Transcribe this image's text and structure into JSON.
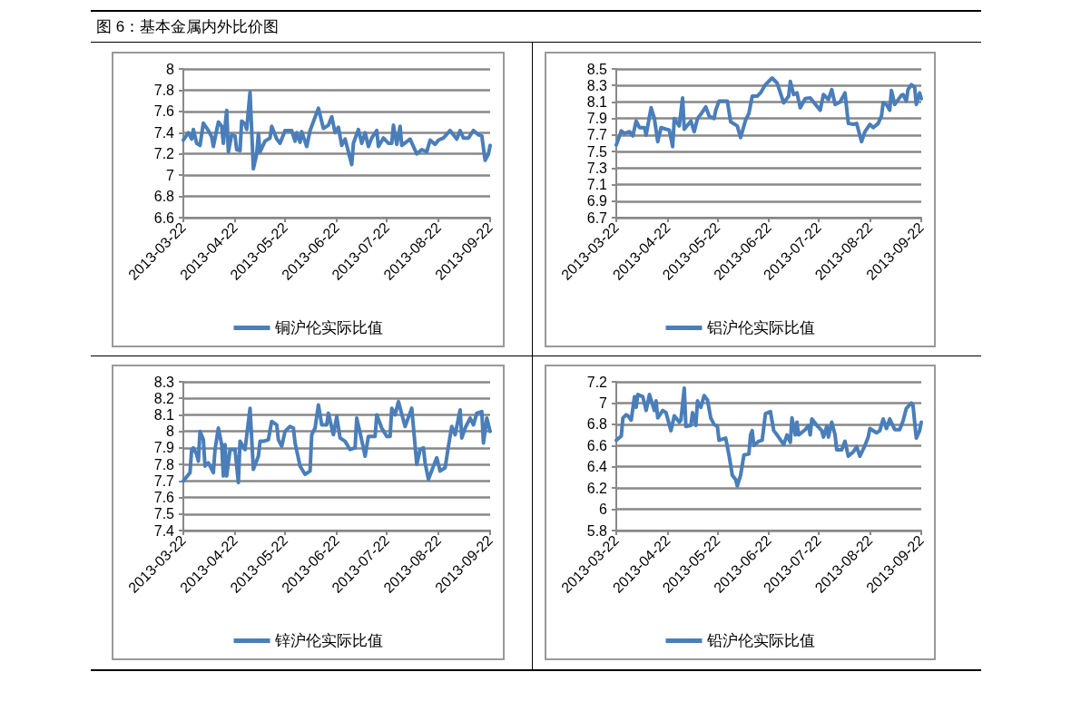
{
  "chart_data": [
    {
      "type": "line",
      "title": "图 6：基本金属内外比价图",
      "xlim": [
        "2013-03-22",
        "2013-09-22"
      ],
      "xticks": [
        "2013-03-22",
        "2013-04-22",
        "2013-05-22",
        "2013-06-22",
        "2013-07-22",
        "2013-08-22",
        "2013-09-22"
      ],
      "ylim": [
        6.6,
        8
      ],
      "yticks": [
        6.6,
        6.8,
        7,
        7.2,
        7.4,
        7.6,
        7.8,
        8
      ],
      "grid": "y",
      "legend": "bottom",
      "marker": "none",
      "line_style": "solid",
      "series": [
        {
          "name": "铜沪伦实际比值",
          "color": "#4a7ebb",
          "x": [
            "2013-03-22",
            "2013-03-25",
            "2013-03-27",
            "2013-03-28",
            "2013-03-30",
            "2013-04-01",
            "2013-04-03",
            "2013-04-06",
            "2013-04-08",
            "2013-04-09",
            "2013-04-12",
            "2013-04-14",
            "2013-04-15",
            "2013-04-17",
            "2013-04-18",
            "2013-04-20",
            "2013-04-22",
            "2013-04-23",
            "2013-04-25",
            "2013-04-26",
            "2013-04-28",
            "2013-04-29",
            "2013-05-01",
            "2013-05-03",
            "2013-05-05",
            "2013-05-06",
            "2013-05-07",
            "2013-05-10",
            "2013-05-13",
            "2013-05-14",
            "2013-05-17",
            "2013-05-19",
            "2013-05-22",
            "2013-05-26",
            "2013-05-28",
            "2013-05-29",
            "2013-05-31",
            "2013-06-01",
            "2013-06-04",
            "2013-06-06",
            "2013-06-11",
            "2013-06-14",
            "2013-06-17",
            "2013-06-19",
            "2013-06-21",
            "2013-06-23",
            "2013-06-25",
            "2013-06-27",
            "2013-07-01",
            "2013-07-02",
            "2013-07-05",
            "2013-07-07",
            "2013-07-09",
            "2013-07-11",
            "2013-07-13",
            "2013-07-16",
            "2013-07-17",
            "2013-07-20",
            "2013-07-23",
            "2013-07-25",
            "2013-07-26",
            "2013-07-28",
            "2013-07-30",
            "2013-07-31",
            "2013-08-05",
            "2013-08-09",
            "2013-08-12",
            "2013-08-15",
            "2013-08-17",
            "2013-08-20",
            "2013-08-22",
            "2013-08-25",
            "2013-08-29",
            "2013-09-02",
            "2013-09-04",
            "2013-09-06",
            "2013-09-09",
            "2013-09-12",
            "2013-09-15",
            "2013-09-17",
            "2013-09-19",
            "2013-09-21",
            "2013-09-22"
          ],
          "values": [
            7.33,
            7.4,
            7.34,
            7.43,
            7.3,
            7.28,
            7.49,
            7.42,
            7.36,
            7.27,
            7.5,
            7.46,
            7.3,
            7.61,
            7.22,
            7.38,
            7.37,
            7.24,
            7.23,
            7.51,
            7.48,
            7.43,
            7.78,
            7.06,
            7.2,
            7.39,
            7.22,
            7.32,
            7.35,
            7.46,
            7.34,
            7.3,
            7.42,
            7.42,
            7.32,
            7.4,
            7.31,
            7.41,
            7.27,
            7.42,
            7.63,
            7.44,
            7.47,
            7.55,
            7.4,
            7.45,
            7.28,
            7.34,
            7.1,
            7.3,
            7.43,
            7.3,
            7.4,
            7.27,
            7.35,
            7.42,
            7.27,
            7.35,
            7.3,
            7.3,
            7.47,
            7.29,
            7.46,
            7.28,
            7.34,
            7.2,
            7.24,
            7.22,
            7.33,
            7.29,
            7.33,
            7.35,
            7.42,
            7.34,
            7.42,
            7.35,
            7.35,
            7.42,
            7.38,
            7.37,
            7.14,
            7.2,
            7.28
          ]
        }
      ]
    },
    {
      "type": "line",
      "xlim": [
        "2013-03-22",
        "2013-09-22"
      ],
      "xticks": [
        "2013-03-22",
        "2013-04-22",
        "2013-05-22",
        "2013-06-22",
        "2013-07-22",
        "2013-08-22",
        "2013-09-22"
      ],
      "ylim": [
        6.7,
        8.5
      ],
      "yticks": [
        6.7,
        6.9,
        7.1,
        7.3,
        7.5,
        7.7,
        7.9,
        8.1,
        8.3,
        8.5
      ],
      "grid": "y",
      "legend": "bottom",
      "marker": "none",
      "line_style": "solid",
      "series": [
        {
          "name": "铝沪伦实际比值",
          "color": "#4a7ebb",
          "x": [
            "2013-03-22",
            "2013-03-25",
            "2013-03-27",
            "2013-03-30",
            "2013-04-01",
            "2013-04-03",
            "2013-04-05",
            "2013-04-08",
            "2013-04-09",
            "2013-04-12",
            "2013-04-14",
            "2013-04-16",
            "2013-04-18",
            "2013-04-21",
            "2013-04-23",
            "2013-04-25",
            "2013-04-26",
            "2013-04-29",
            "2013-05-01",
            "2013-05-02",
            "2013-05-06",
            "2013-05-08",
            "2013-05-10",
            "2013-05-12",
            "2013-05-15",
            "2013-05-17",
            "2013-05-20",
            "2013-05-21",
            "2013-05-23",
            "2013-05-28",
            "2013-05-30",
            "2013-06-03",
            "2013-06-05",
            "2013-06-08",
            "2013-06-10",
            "2013-06-12",
            "2013-06-15",
            "2013-06-17",
            "2013-06-20",
            "2013-06-24",
            "2013-06-27",
            "2013-07-01",
            "2013-07-04",
            "2013-07-05",
            "2013-07-07",
            "2013-07-09",
            "2013-07-11",
            "2013-07-14",
            "2013-07-17",
            "2013-07-21",
            "2013-07-23",
            "2013-07-25",
            "2013-07-28",
            "2013-07-30",
            "2013-08-01",
            "2013-08-04",
            "2013-08-07",
            "2013-08-09",
            "2013-08-12",
            "2013-08-14",
            "2013-08-17",
            "2013-08-19",
            "2013-08-22",
            "2013-08-24",
            "2013-08-27",
            "2013-08-29",
            "2013-08-30",
            "2013-09-01",
            "2013-09-03",
            "2013-09-04",
            "2013-09-06",
            "2013-09-10",
            "2013-09-11",
            "2013-09-13",
            "2013-09-14",
            "2013-09-16",
            "2013-09-18",
            "2013-09-19",
            "2013-09-21",
            "2013-09-22"
          ],
          "values": [
            7.58,
            7.75,
            7.72,
            7.74,
            7.69,
            7.87,
            7.79,
            7.79,
            7.7,
            8.03,
            7.9,
            7.62,
            7.79,
            7.77,
            7.76,
            7.56,
            7.9,
            7.81,
            8.15,
            7.77,
            7.87,
            7.74,
            7.9,
            7.95,
            8.04,
            7.93,
            7.9,
            8.0,
            8.11,
            8.11,
            7.86,
            7.81,
            7.67,
            7.88,
            7.96,
            8.17,
            8.17,
            8.21,
            8.31,
            8.39,
            8.33,
            8.09,
            8.17,
            8.35,
            8.19,
            8.21,
            8.03,
            8.14,
            8.15,
            8.05,
            8.0,
            8.19,
            8.13,
            8.25,
            8.07,
            8.1,
            8.21,
            7.84,
            7.83,
            7.84,
            7.62,
            7.74,
            7.83,
            7.79,
            7.84,
            7.93,
            8.09,
            8.07,
            8.0,
            8.24,
            8.07,
            8.18,
            8.19,
            8.11,
            8.25,
            8.31,
            8.28,
            8.07,
            8.21,
            8.14
          ]
        }
      ]
    },
    {
      "type": "line",
      "xlim": [
        "2013-03-22",
        "2013-09-22"
      ],
      "xticks": [
        "2013-03-22",
        "2013-04-22",
        "2013-05-22",
        "2013-06-22",
        "2013-07-22",
        "2013-08-22",
        "2013-09-22"
      ],
      "ylim": [
        7.4,
        8.3
      ],
      "yticks": [
        7.4,
        7.5,
        7.6,
        7.7,
        7.8,
        7.9,
        8,
        8.1,
        8.2,
        8.3
      ],
      "grid": "y",
      "legend": "bottom",
      "marker": "none",
      "line_style": "solid",
      "series": [
        {
          "name": "锌沪伦实际比值",
          "color": "#4a7ebb",
          "x": [
            "2013-03-22",
            "2013-03-26",
            "2013-03-27",
            "2013-03-28",
            "2013-03-30",
            "2013-03-31",
            "2013-04-01",
            "2013-04-03",
            "2013-04-04",
            "2013-04-06",
            "2013-04-09",
            "2013-04-10",
            "2013-04-12",
            "2013-04-14",
            "2013-04-15",
            "2013-04-16",
            "2013-04-17",
            "2013-04-19",
            "2013-04-22",
            "2013-04-24",
            "2013-04-25",
            "2013-04-28",
            "2013-05-01",
            "2013-05-03",
            "2013-05-06",
            "2013-05-07",
            "2013-05-09",
            "2013-05-12",
            "2013-05-14",
            "2013-05-17",
            "2013-05-18",
            "2013-05-20",
            "2013-05-22",
            "2013-05-25",
            "2013-05-27",
            "2013-05-28",
            "2013-05-31",
            "2013-06-03",
            "2013-06-06",
            "2013-06-07",
            "2013-06-09",
            "2013-06-11",
            "2013-06-13",
            "2013-06-16",
            "2013-06-17",
            "2013-06-20",
            "2013-06-22",
            "2013-06-24",
            "2013-06-27",
            "2013-06-30",
            "2013-07-03",
            "2013-07-04",
            "2013-07-06",
            "2013-07-08",
            "2013-07-09",
            "2013-07-11",
            "2013-07-12",
            "2013-07-15",
            "2013-07-16",
            "2013-07-19",
            "2013-07-22",
            "2013-07-24",
            "2013-07-25",
            "2013-07-27",
            "2013-07-29",
            "2013-08-02",
            "2013-08-06",
            "2013-08-09",
            "2013-08-11",
            "2013-08-13",
            "2013-08-14",
            "2013-08-16",
            "2013-08-19",
            "2013-08-21",
            "2013-08-23",
            "2013-08-26",
            "2013-08-28",
            "2013-08-30",
            "2013-09-01",
            "2013-09-04",
            "2013-09-05",
            "2013-09-07",
            "2013-09-10",
            "2013-09-12",
            "2013-09-14",
            "2013-09-17",
            "2013-09-18",
            "2013-09-20",
            "2013-09-22"
          ],
          "values": [
            7.7,
            7.75,
            7.89,
            7.9,
            7.86,
            7.82,
            8.0,
            7.95,
            7.79,
            7.81,
            7.75,
            7.89,
            8.02,
            7.92,
            7.73,
            7.92,
            7.73,
            7.89,
            7.89,
            7.69,
            7.94,
            7.89,
            8.14,
            7.77,
            7.85,
            7.94,
            7.94,
            7.95,
            8.06,
            8.04,
            7.95,
            7.91,
            8.0,
            8.03,
            8.02,
            7.93,
            7.79,
            7.74,
            7.76,
            7.98,
            8.02,
            8.16,
            8.04,
            8.04,
            8.11,
            7.98,
            8.09,
            7.96,
            7.94,
            7.89,
            7.9,
            8.08,
            7.99,
            7.9,
            7.85,
            7.97,
            7.97,
            7.97,
            8.1,
            8.02,
            7.97,
            7.97,
            8.14,
            8.1,
            8.18,
            8.03,
            8.14,
            7.8,
            7.89,
            7.9,
            7.81,
            7.71,
            7.79,
            7.84,
            7.76,
            7.78,
            7.91,
            8.03,
            7.98,
            8.13,
            7.96,
            8.02,
            8.08,
            8.04,
            8.11,
            8.12,
            7.93,
            8.08,
            8.0
          ]
        }
      ]
    },
    {
      "type": "line",
      "xlim": [
        "2013-03-22",
        "2013-09-22"
      ],
      "xticks": [
        "2013-03-22",
        "2013-04-22",
        "2013-05-22",
        "2013-06-22",
        "2013-07-22",
        "2013-08-22",
        "2013-09-22"
      ],
      "ylim": [
        5.8,
        7.2
      ],
      "yticks": [
        5.8,
        6,
        6.2,
        6.4,
        6.6,
        6.8,
        7,
        7.2
      ],
      "grid": "y",
      "legend": "bottom",
      "marker": "none",
      "line_style": "solid",
      "series": [
        {
          "name": "铅沪伦实际比值",
          "color": "#4a7ebb",
          "x": [
            "2013-03-22",
            "2013-03-25",
            "2013-03-26",
            "2013-03-28",
            "2013-03-29",
            "2013-03-31",
            "2013-04-02",
            "2013-04-03",
            "2013-04-04",
            "2013-04-07",
            "2013-04-09",
            "2013-04-11",
            "2013-04-14",
            "2013-04-15",
            "2013-04-16",
            "2013-04-19",
            "2013-04-21",
            "2013-04-24",
            "2013-04-26",
            "2013-04-27",
            "2013-04-29",
            "2013-04-30",
            "2013-05-02",
            "2013-05-03",
            "2013-05-06",
            "2013-05-07",
            "2013-05-09",
            "2013-05-10",
            "2013-05-12",
            "2013-05-14",
            "2013-05-16",
            "2013-05-18",
            "2013-05-20",
            "2013-05-22",
            "2013-05-23",
            "2013-05-27",
            "2013-05-29",
            "2013-05-31",
            "2013-06-02",
            "2013-06-03",
            "2013-06-05",
            "2013-06-07",
            "2013-06-10",
            "2013-06-11",
            "2013-06-12",
            "2013-06-13",
            "2013-06-16",
            "2013-06-18",
            "2013-06-20",
            "2013-06-23",
            "2013-06-25",
            "2013-06-27",
            "2013-07-01",
            "2013-07-03",
            "2013-07-05",
            "2013-07-06",
            "2013-07-08",
            "2013-07-09",
            "2013-07-10",
            "2013-07-14",
            "2013-07-16",
            "2013-07-17",
            "2013-07-18",
            "2013-07-21",
            "2013-07-24",
            "2013-07-25",
            "2013-07-27",
            "2013-07-28",
            "2013-07-30",
            "2013-08-01",
            "2013-08-02",
            "2013-08-05",
            "2013-08-07",
            "2013-08-09",
            "2013-08-12",
            "2013-08-14",
            "2013-08-16",
            "2013-08-19",
            "2013-08-21",
            "2013-08-22",
            "2013-08-26",
            "2013-08-28",
            "2013-08-30",
            "2013-09-01",
            "2013-09-03",
            "2013-09-06",
            "2013-09-09",
            "2013-09-11",
            "2013-09-13",
            "2013-09-16",
            "2013-09-17",
            "2013-09-19",
            "2013-09-21",
            "2013-09-22"
          ],
          "values": [
            6.65,
            6.69,
            6.86,
            6.89,
            6.88,
            6.84,
            7.06,
            6.96,
            7.08,
            7.06,
            6.93,
            7.08,
            6.93,
            7.02,
            6.86,
            6.93,
            6.91,
            6.74,
            6.88,
            6.86,
            6.82,
            6.84,
            7.14,
            6.78,
            6.79,
            6.91,
            6.79,
            7.02,
            6.96,
            7.07,
            7.03,
            6.86,
            6.8,
            6.78,
            6.65,
            6.67,
            6.51,
            6.32,
            6.28,
            6.22,
            6.32,
            6.51,
            6.52,
            6.7,
            6.74,
            6.6,
            6.64,
            6.65,
            6.9,
            6.92,
            6.74,
            6.7,
            6.61,
            6.7,
            6.63,
            6.86,
            6.7,
            6.82,
            6.7,
            6.75,
            6.79,
            6.7,
            6.85,
            6.79,
            6.74,
            6.68,
            6.78,
            6.68,
            6.82,
            6.7,
            6.56,
            6.56,
            6.64,
            6.5,
            6.54,
            6.59,
            6.5,
            6.6,
            6.68,
            6.76,
            6.72,
            6.74,
            6.85,
            6.76,
            6.85,
            6.75,
            6.75,
            6.83,
            6.95,
            7.0,
            6.98,
            6.67,
            6.74,
            6.82
          ]
        }
      ]
    }
  ]
}
